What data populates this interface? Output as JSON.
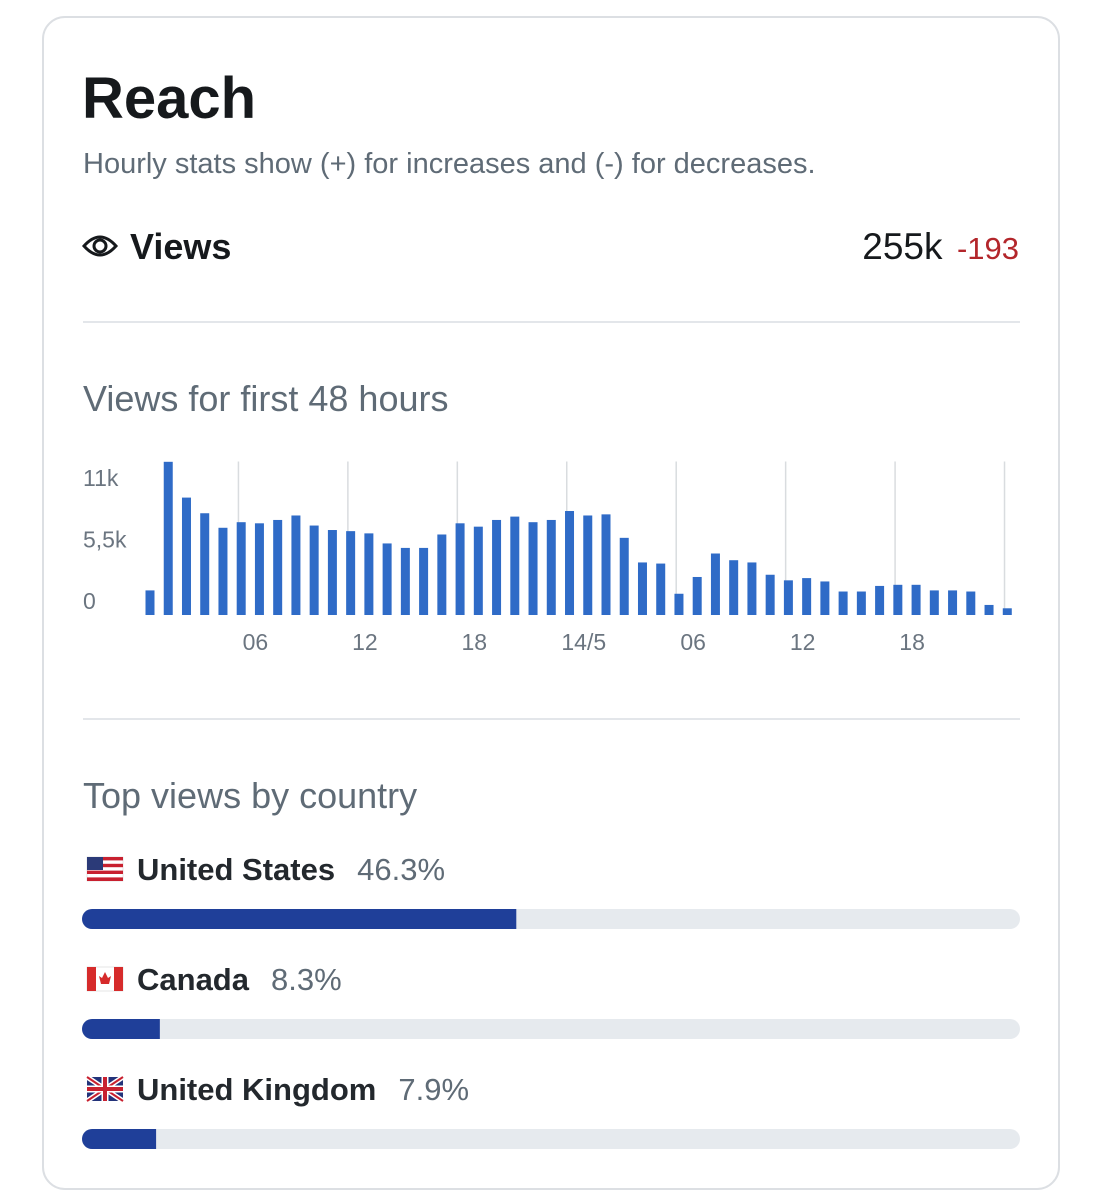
{
  "header": {
    "title": "Reach",
    "subtitle": "Hourly stats show (+) for increases and (-) for decreases."
  },
  "views": {
    "label": "Views",
    "total": "255k",
    "change": "-193"
  },
  "chart_data": [
    {
      "type": "bar",
      "title": "Views for first 48 hours",
      "categories": [
        null,
        null,
        null,
        null,
        null,
        null,
        "06",
        null,
        null,
        null,
        null,
        null,
        "12",
        null,
        null,
        null,
        null,
        null,
        "18",
        null,
        null,
        null,
        null,
        null,
        "14/5",
        null,
        null,
        null,
        null,
        null,
        "06",
        null,
        null,
        null,
        null,
        null,
        "12",
        null,
        null,
        null,
        null,
        null,
        "18",
        null,
        null,
        null,
        null,
        null
      ],
      "values": [
        2200,
        13700,
        10500,
        9100,
        7800,
        8300,
        8200,
        8500,
        8900,
        8000,
        7600,
        7500,
        7300,
        6400,
        6000,
        6000,
        7200,
        8200,
        7900,
        8500,
        8800,
        8300,
        8500,
        9300,
        8900,
        9000,
        6900,
        4700,
        4600,
        1900,
        3400,
        5500,
        4900,
        4700,
        3600,
        3100,
        3300,
        3000,
        2100,
        2100,
        2600,
        2700,
        2700,
        2200,
        2200,
        2100,
        900,
        600
      ],
      "color": "#2f6bc7",
      "ylim": [
        0,
        14000
      ],
      "yticks": [
        {
          "value": 11000,
          "label": "11k"
        },
        {
          "value": 5500,
          "label": "5,5k"
        },
        0
      ]
    },
    {
      "type": "barh",
      "title": "Top views by country",
      "categories": [
        "United States",
        "Canada",
        "United Kingdom"
      ],
      "values": [
        46.3,
        8.3,
        7.9
      ],
      "value_labels": [
        "46.3%",
        "8.3%",
        "7.9%"
      ],
      "xlim": [
        0,
        100
      ],
      "color": "#1f3f99"
    }
  ]
}
